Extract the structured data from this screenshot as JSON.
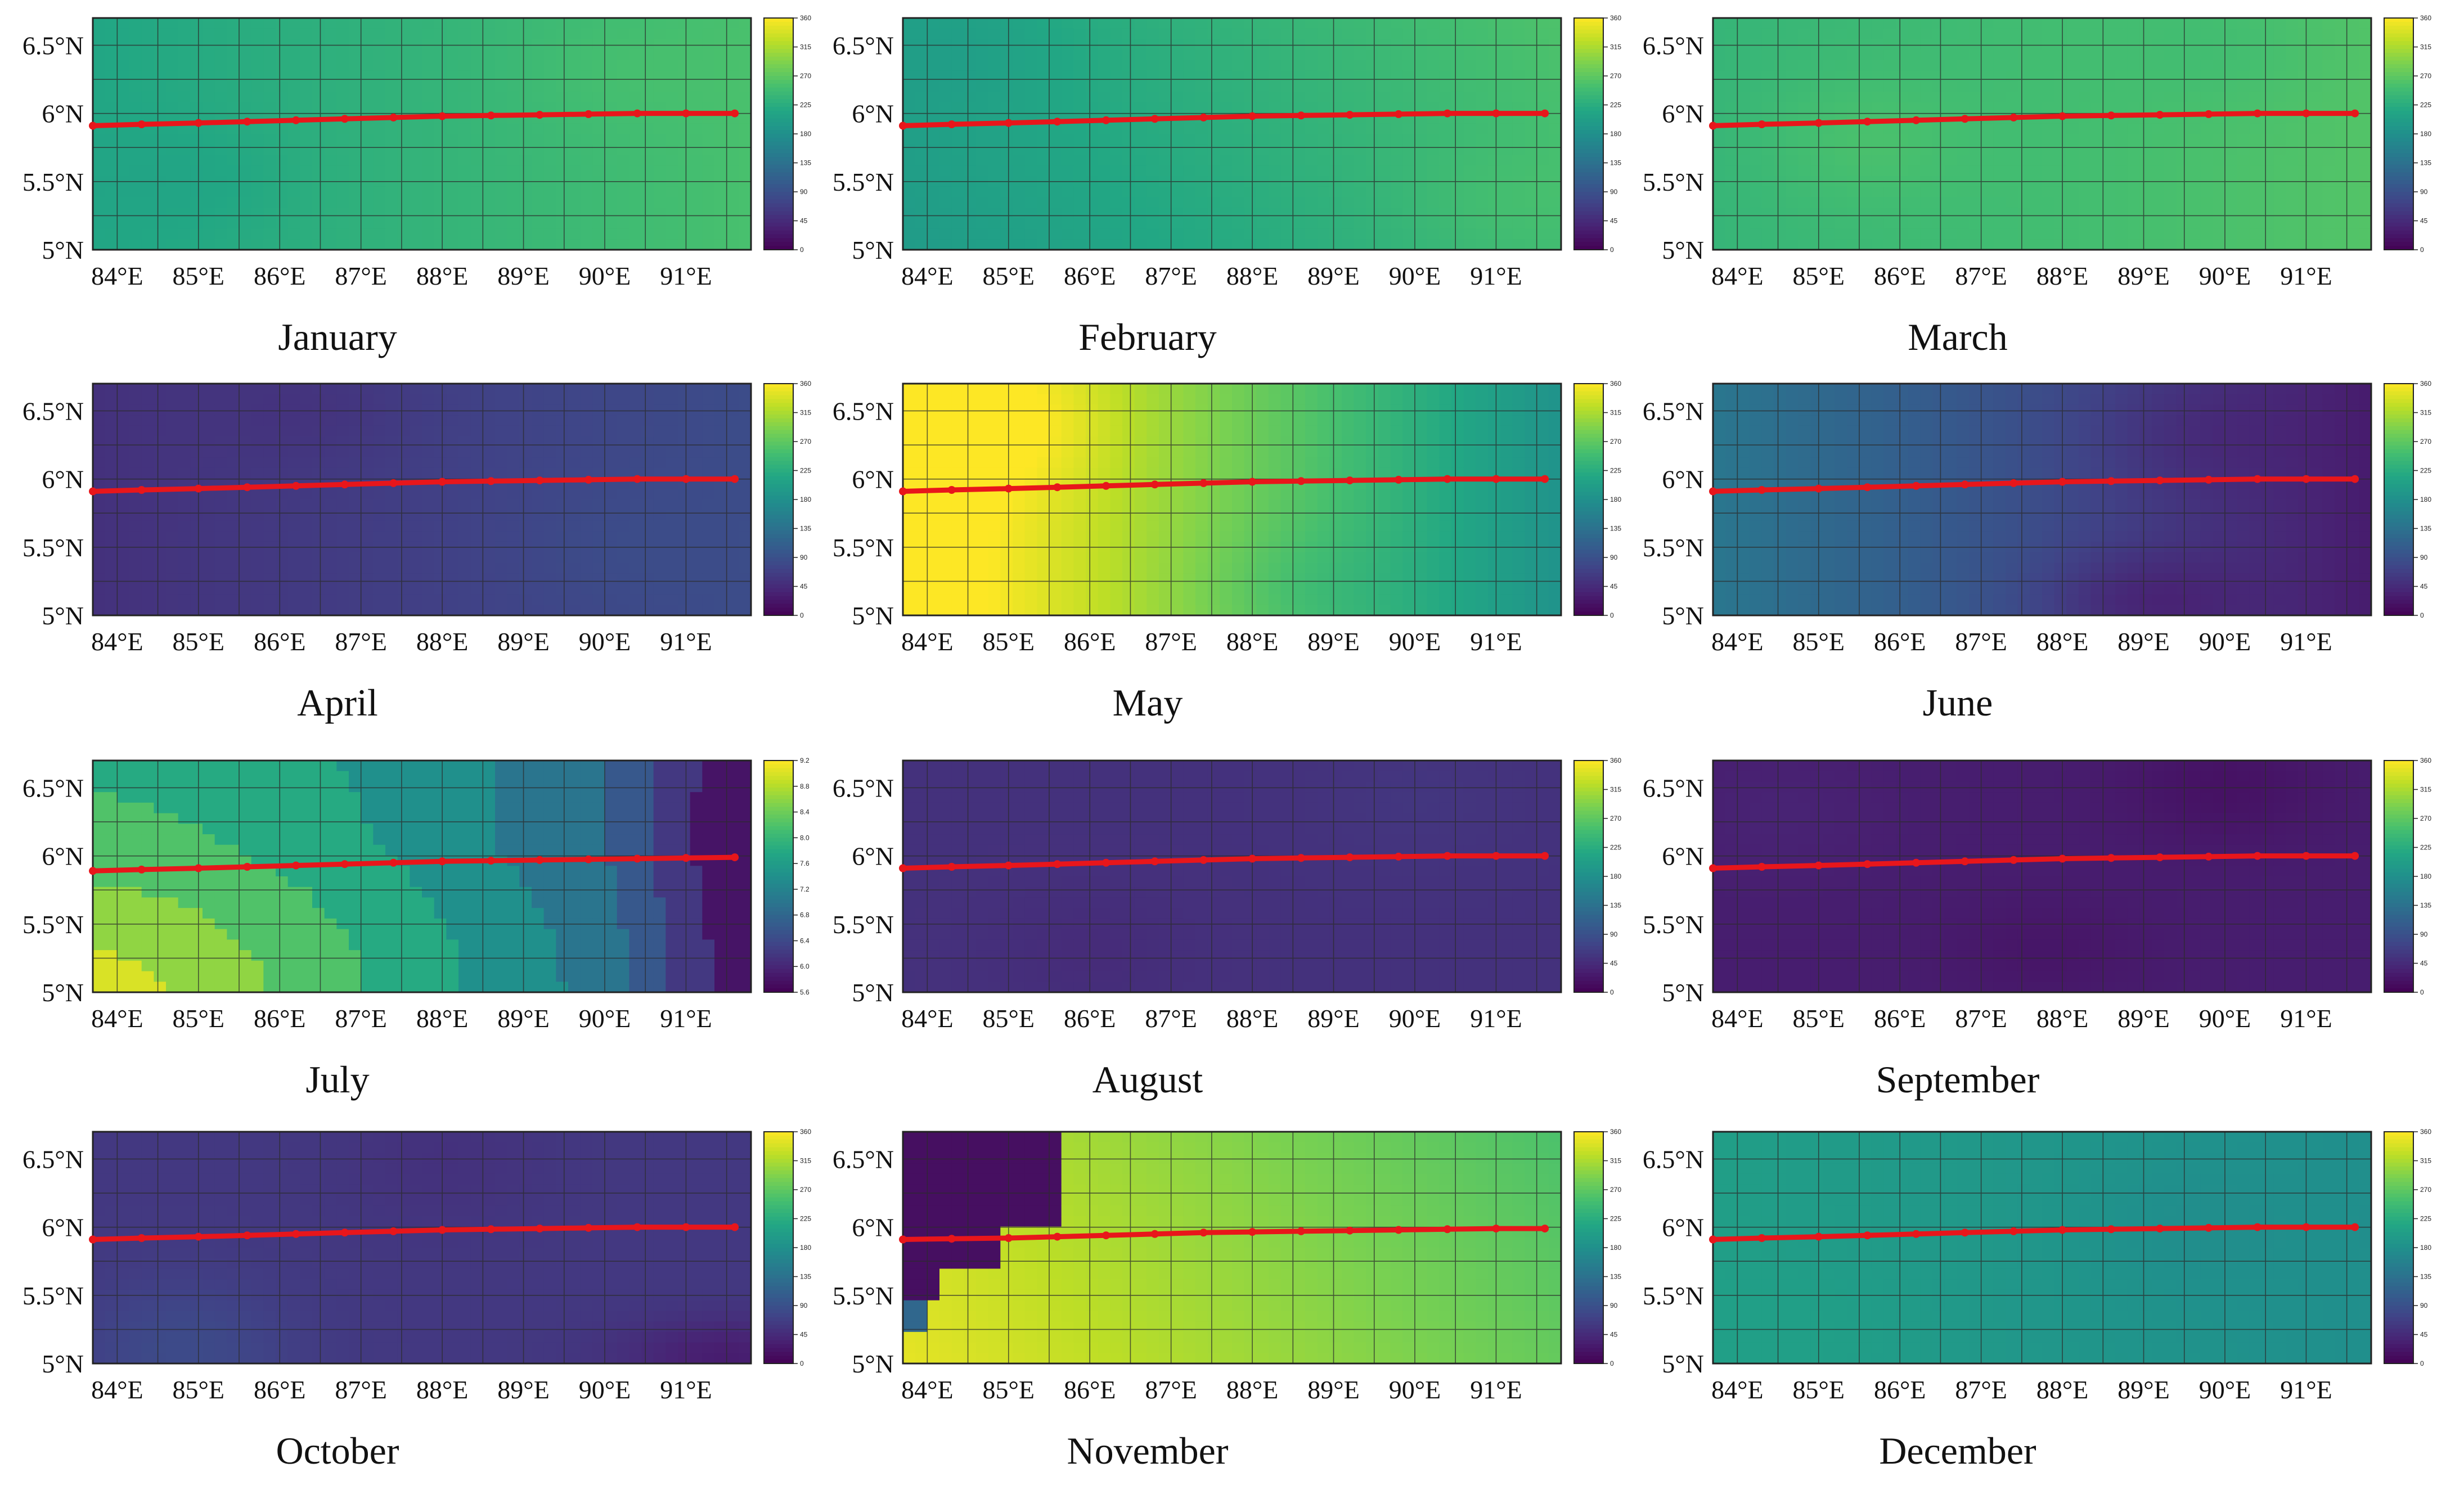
{
  "colors": {
    "track": "#e8161b",
    "grid": "#2b2b2b",
    "frame": "#222222"
  },
  "chart_data": [
    {
      "type": "heatmap",
      "title": "January",
      "xticks": [
        "84°E",
        "85°E",
        "86°E",
        "87°E",
        "88°E",
        "89°E",
        "90°E",
        "91°E"
      ],
      "yticks": [
        "6.5°N",
        "6°N",
        "5.5°N",
        "5°N"
      ],
      "xlim": [
        83.7,
        91.8
      ],
      "ylim": [
        5.0,
        6.7
      ],
      "colorbar": {
        "min": 0,
        "max": 360,
        "ticks": [
          "360",
          "315",
          "270",
          "225",
          "180",
          "135",
          "90",
          "45",
          "0"
        ]
      },
      "field": {
        "base": 235,
        "gradx": 5,
        "grady": 0,
        "blobs": [
          [
            85,
            5.5,
            -8,
            0.8
          ],
          [
            90,
            6.3,
            6,
            0.8
          ]
        ]
      },
      "track": {
        "lon": [
          83.7,
          84.3,
          85.0,
          85.6,
          86.2,
          86.8,
          87.4,
          88.0,
          88.6,
          89.2,
          89.8,
          90.4,
          91.0,
          91.6
        ],
        "lat": [
          5.91,
          5.92,
          5.93,
          5.94,
          5.95,
          5.96,
          5.97,
          5.98,
          5.985,
          5.99,
          5.995,
          6.0,
          6.0,
          6.0
        ]
      }
    },
    {
      "type": "heatmap",
      "title": "February",
      "xticks": [
        "84°E",
        "85°E",
        "86°E",
        "87°E",
        "88°E",
        "89°E",
        "90°E",
        "91°E"
      ],
      "yticks": [
        "6.5°N",
        "6°N",
        "5.5°N",
        "5°N"
      ],
      "xlim": [
        83.7,
        91.8
      ],
      "ylim": [
        5.0,
        6.7
      ],
      "colorbar": {
        "min": 0,
        "max": 360,
        "ticks": [
          "360",
          "315",
          "270",
          "225",
          "180",
          "135",
          "90",
          "45",
          "0"
        ]
      },
      "field": {
        "base": 228,
        "gradx": 6,
        "grady": 8,
        "blobs": [
          [
            84.5,
            6.5,
            -10,
            0.9
          ],
          [
            91,
            5.3,
            8,
            0.8
          ]
        ]
      },
      "track": {
        "lon": [
          83.7,
          84.3,
          85.0,
          85.6,
          86.2,
          86.8,
          87.4,
          88.0,
          88.6,
          89.2,
          89.8,
          90.4,
          91.0,
          91.6
        ],
        "lat": [
          5.91,
          5.92,
          5.93,
          5.94,
          5.95,
          5.96,
          5.97,
          5.98,
          5.985,
          5.99,
          5.995,
          6.0,
          6.0,
          6.0
        ]
      }
    },
    {
      "type": "heatmap",
      "title": "March",
      "xticks": [
        "84°E",
        "85°E",
        "86°E",
        "87°E",
        "88°E",
        "89°E",
        "90°E",
        "91°E"
      ],
      "yticks": [
        "6.5°N",
        "6°N",
        "5.5°N",
        "5°N"
      ],
      "xlim": [
        83.7,
        91.8
      ],
      "ylim": [
        5.0,
        6.7
      ],
      "colorbar": {
        "min": 0,
        "max": 360,
        "ticks": [
          "360",
          "315",
          "270",
          "225",
          "180",
          "135",
          "90",
          "45",
          "0"
        ]
      },
      "field": {
        "base": 250,
        "gradx": 3,
        "grady": 0,
        "blobs": [
          [
            85.5,
            5.8,
            12,
            0.9
          ],
          [
            90,
            6.5,
            -6,
            0.8
          ]
        ]
      },
      "track": {
        "lon": [
          83.7,
          84.3,
          85.0,
          85.6,
          86.2,
          86.8,
          87.4,
          88.0,
          88.6,
          89.2,
          89.8,
          90.4,
          91.0,
          91.6
        ],
        "lat": [
          5.91,
          5.92,
          5.93,
          5.94,
          5.95,
          5.96,
          5.97,
          5.98,
          5.985,
          5.99,
          5.995,
          6.0,
          6.0,
          6.0
        ]
      }
    },
    {
      "type": "heatmap",
      "title": "April",
      "xticks": [
        "84°E",
        "85°E",
        "86°E",
        "87°E",
        "88°E",
        "89°E",
        "90°E",
        "91°E"
      ],
      "yticks": [
        "6.5°N",
        "6°N",
        "5.5°N",
        "5°N"
      ],
      "xlim": [
        83.7,
        91.8
      ],
      "ylim": [
        5.0,
        6.7
      ],
      "colorbar": {
        "min": 0,
        "max": 360,
        "ticks": [
          "360",
          "315",
          "270",
          "225",
          "180",
          "135",
          "90",
          "45",
          "0"
        ]
      },
      "field": {
        "base": 68,
        "gradx": 4,
        "grady": 0,
        "blobs": [
          [
            86.5,
            6.5,
            -8,
            0.8
          ],
          [
            90,
            5.5,
            6,
            0.9
          ]
        ]
      },
      "track": {
        "lon": [
          83.7,
          84.3,
          85.0,
          85.6,
          86.2,
          86.8,
          87.4,
          88.0,
          88.6,
          89.2,
          89.8,
          90.4,
          91.0,
          91.6
        ],
        "lat": [
          5.91,
          5.92,
          5.93,
          5.94,
          5.95,
          5.96,
          5.97,
          5.98,
          5.985,
          5.99,
          5.995,
          6.0,
          6.0,
          6.0
        ]
      }
    },
    {
      "type": "heatmap",
      "title": "May",
      "xticks": [
        "84°E",
        "85°E",
        "86°E",
        "87°E",
        "88°E",
        "89°E",
        "90°E",
        "91°E"
      ],
      "yticks": [
        "6.5°N",
        "6°N",
        "5.5°N",
        "5°N"
      ],
      "xlim": [
        83.7,
        91.8
      ],
      "ylim": [
        5.0,
        6.7
      ],
      "colorbar": {
        "min": 0,
        "max": 360,
        "ticks": [
          "360",
          "315",
          "270",
          "225",
          "180",
          "135",
          "90",
          "45",
          "0"
        ]
      },
      "field": {
        "base": 285,
        "gradx": -25,
        "grady": 0,
        "blobs": [
          [
            85,
            6.4,
            20,
            0.9
          ],
          [
            88.5,
            5.2,
            -14,
            0.8
          ]
        ]
      },
      "track": {
        "lon": [
          83.7,
          84.3,
          85.0,
          85.6,
          86.2,
          86.8,
          87.4,
          88.0,
          88.6,
          89.2,
          89.8,
          90.4,
          91.0,
          91.6
        ],
        "lat": [
          5.91,
          5.92,
          5.93,
          5.94,
          5.95,
          5.96,
          5.97,
          5.98,
          5.985,
          5.99,
          5.995,
          6.0,
          6.0,
          6.0
        ]
      }
    },
    {
      "type": "heatmap",
      "title": "June",
      "xticks": [
        "84°E",
        "85°E",
        "86°E",
        "87°E",
        "88°E",
        "89°E",
        "90°E",
        "91°E"
      ],
      "yticks": [
        "6.5°N",
        "6°N",
        "5.5°N",
        "5°N"
      ],
      "xlim": [
        83.7,
        91.8
      ],
      "ylim": [
        5.0,
        6.7
      ],
      "colorbar": {
        "min": 0,
        "max": 360,
        "ticks": [
          "360",
          "315",
          "270",
          "225",
          "180",
          "135",
          "90",
          "45",
          "0"
        ]
      },
      "field": {
        "base": 85,
        "gradx": -14,
        "grady": 0,
        "blobs": [
          [
            88.9,
            5.1,
            -30,
            0.7
          ],
          [
            89.5,
            6.3,
            -14,
            0.9
          ]
        ]
      },
      "track": {
        "lon": [
          83.7,
          84.3,
          85.0,
          85.6,
          86.2,
          86.8,
          87.4,
          88.0,
          88.6,
          89.2,
          89.8,
          90.4,
          91.0,
          91.6
        ],
        "lat": [
          5.91,
          5.92,
          5.93,
          5.94,
          5.95,
          5.96,
          5.97,
          5.98,
          5.985,
          5.99,
          5.995,
          6.0,
          6.0,
          6.0
        ]
      }
    },
    {
      "type": "heatmap",
      "title": "July",
      "xticks": [
        "84°E",
        "85°E",
        "86°E",
        "87°E",
        "88°E",
        "89°E",
        "90°E",
        "91°E"
      ],
      "yticks": [
        "6.5°N",
        "6°N",
        "5.5°N",
        "5°N"
      ],
      "xlim": [
        83.7,
        91.8
      ],
      "ylim": [
        5.0,
        6.7
      ],
      "colorbar": {
        "min": 5.6,
        "max": 9.2,
        "ticks": [
          "9.2",
          "8.8",
          "8.4",
          "8.0",
          "7.6",
          "7.2",
          "6.8",
          "6.4",
          "6.0",
          "5.6"
        ]
      },
      "field": {
        "mode": "july",
        "steps": 9
      },
      "track": {
        "lon": [
          83.7,
          84.3,
          85.0,
          85.6,
          86.2,
          86.8,
          87.4,
          88.0,
          88.6,
          89.2,
          89.8,
          90.4,
          91.0,
          91.6
        ],
        "lat": [
          5.89,
          5.9,
          5.91,
          5.92,
          5.93,
          5.94,
          5.95,
          5.96,
          5.965,
          5.97,
          5.975,
          5.98,
          5.985,
          5.99
        ]
      }
    },
    {
      "type": "heatmap",
      "title": "August",
      "xticks": [
        "84°E",
        "85°E",
        "86°E",
        "87°E",
        "88°E",
        "89°E",
        "90°E",
        "91°E"
      ],
      "yticks": [
        "6.5°N",
        "6°N",
        "5.5°N",
        "5°N"
      ],
      "xlim": [
        83.7,
        91.8
      ],
      "ylim": [
        5.0,
        6.7
      ],
      "colorbar": {
        "min": 0,
        "max": 360,
        "ticks": [
          "360",
          "315",
          "270",
          "225",
          "180",
          "135",
          "90",
          "45",
          "0"
        ]
      },
      "field": {
        "base": 52,
        "gradx": 0,
        "grady": 0,
        "blobs": [
          [
            86,
            5.3,
            -6,
            0.9
          ],
          [
            90,
            6.4,
            5,
            0.9
          ]
        ]
      },
      "track": {
        "lon": [
          83.7,
          84.3,
          85.0,
          85.6,
          86.2,
          86.8,
          87.4,
          88.0,
          88.6,
          89.2,
          89.8,
          90.4,
          91.0,
          91.6
        ],
        "lat": [
          5.91,
          5.92,
          5.93,
          5.94,
          5.95,
          5.96,
          5.97,
          5.98,
          5.985,
          5.99,
          5.995,
          6.0,
          6.0,
          6.0
        ]
      }
    },
    {
      "type": "heatmap",
      "title": "September",
      "xticks": [
        "84°E",
        "85°E",
        "86°E",
        "87°E",
        "88°E",
        "89°E",
        "90°E",
        "91°E"
      ],
      "yticks": [
        "6.5°N",
        "6°N",
        "5.5°N",
        "5°N"
      ],
      "xlim": [
        83.7,
        91.8
      ],
      "ylim": [
        5.0,
        6.7
      ],
      "colorbar": {
        "min": 0,
        "max": 360,
        "ticks": [
          "360",
          "315",
          "270",
          "225",
          "180",
          "135",
          "90",
          "45",
          "0"
        ]
      },
      "field": {
        "base": 30,
        "gradx": 0,
        "grady": 0,
        "blobs": [
          [
            90,
            6.5,
            -12,
            0.8
          ],
          [
            87.8,
            5.3,
            -8,
            0.7
          ],
          [
            84.5,
            6.3,
            6,
            0.9
          ]
        ]
      },
      "track": {
        "lon": [
          83.7,
          84.3,
          85.0,
          85.6,
          86.2,
          86.8,
          87.4,
          88.0,
          88.6,
          89.2,
          89.8,
          90.4,
          91.0,
          91.6
        ],
        "lat": [
          5.91,
          5.92,
          5.93,
          5.94,
          5.95,
          5.96,
          5.97,
          5.98,
          5.985,
          5.99,
          5.995,
          6.0,
          6.0,
          6.0
        ]
      }
    },
    {
      "type": "heatmap",
      "title": "October",
      "xticks": [
        "84°E",
        "85°E",
        "86°E",
        "87°E",
        "88°E",
        "89°E",
        "90°E",
        "91°E"
      ],
      "yticks": [
        "6.5°N",
        "6°N",
        "5.5°N",
        "5°N"
      ],
      "xlim": [
        83.7,
        91.8
      ],
      "ylim": [
        5.0,
        6.7
      ],
      "colorbar": {
        "min": 0,
        "max": 360,
        "ticks": [
          "360",
          "315",
          "270",
          "225",
          "180",
          "135",
          "90",
          "45",
          "0"
        ]
      },
      "field": {
        "base": 60,
        "gradx": 0,
        "grady": 0,
        "blobs": [
          [
            84.8,
            5.1,
            22,
            0.9
          ],
          [
            91.5,
            5.05,
            -30,
            0.5
          ],
          [
            88,
            6.5,
            -8,
            1.0
          ]
        ]
      },
      "track": {
        "lon": [
          83.7,
          84.3,
          85.0,
          85.6,
          86.2,
          86.8,
          87.4,
          88.0,
          88.6,
          89.2,
          89.8,
          90.4,
          91.0,
          91.6
        ],
        "lat": [
          5.91,
          5.92,
          5.93,
          5.94,
          5.95,
          5.96,
          5.97,
          5.98,
          5.985,
          5.99,
          5.995,
          6.0,
          6.0,
          6.0
        ]
      }
    },
    {
      "type": "heatmap",
      "title": "November",
      "xticks": [
        "84°E",
        "85°E",
        "86°E",
        "87°E",
        "88°E",
        "89°E",
        "90°E",
        "91°E"
      ],
      "yticks": [
        "6.5°N",
        "6°N",
        "5.5°N",
        "5°N"
      ],
      "xlim": [
        83.7,
        91.8
      ],
      "ylim": [
        5.0,
        6.7
      ],
      "colorbar": {
        "min": 0,
        "max": 360,
        "ticks": [
          "360",
          "315",
          "270",
          "225",
          "180",
          "135",
          "90",
          "45",
          "0"
        ]
      },
      "field": {
        "mode": "november"
      },
      "track": {
        "lon": [
          83.7,
          84.3,
          85.0,
          85.6,
          86.2,
          86.8,
          87.4,
          88.0,
          88.6,
          89.2,
          89.8,
          90.4,
          91.0,
          91.6
        ],
        "lat": [
          5.91,
          5.915,
          5.92,
          5.93,
          5.94,
          5.95,
          5.96,
          5.965,
          5.97,
          5.975,
          5.98,
          5.985,
          5.99,
          5.99
        ]
      }
    },
    {
      "type": "heatmap",
      "title": "December",
      "xticks": [
        "84°E",
        "85°E",
        "86°E",
        "87°E",
        "88°E",
        "89°E",
        "90°E",
        "91°E"
      ],
      "yticks": [
        "6.5°N",
        "6°N",
        "5.5°N",
        "5°N"
      ],
      "xlim": [
        83.7,
        91.8
      ],
      "ylim": [
        5.0,
        6.7
      ],
      "colorbar": {
        "min": 0,
        "max": 360,
        "ticks": [
          "360",
          "315",
          "270",
          "225",
          "180",
          "135",
          "90",
          "45",
          "0"
        ]
      },
      "field": {
        "base": 190,
        "gradx": -3,
        "grady": 0,
        "blobs": [
          [
            89.5,
            6.0,
            -8,
            1.0
          ],
          [
            85,
            5.2,
            5,
            0.9
          ]
        ]
      },
      "track": {
        "lon": [
          83.7,
          84.3,
          85.0,
          85.6,
          86.2,
          86.8,
          87.4,
          88.0,
          88.6,
          89.2,
          89.8,
          90.4,
          91.0,
          91.6
        ],
        "lat": [
          5.91,
          5.92,
          5.93,
          5.94,
          5.95,
          5.96,
          5.97,
          5.98,
          5.985,
          5.99,
          5.995,
          6.0,
          6.0,
          6.0
        ]
      }
    }
  ]
}
